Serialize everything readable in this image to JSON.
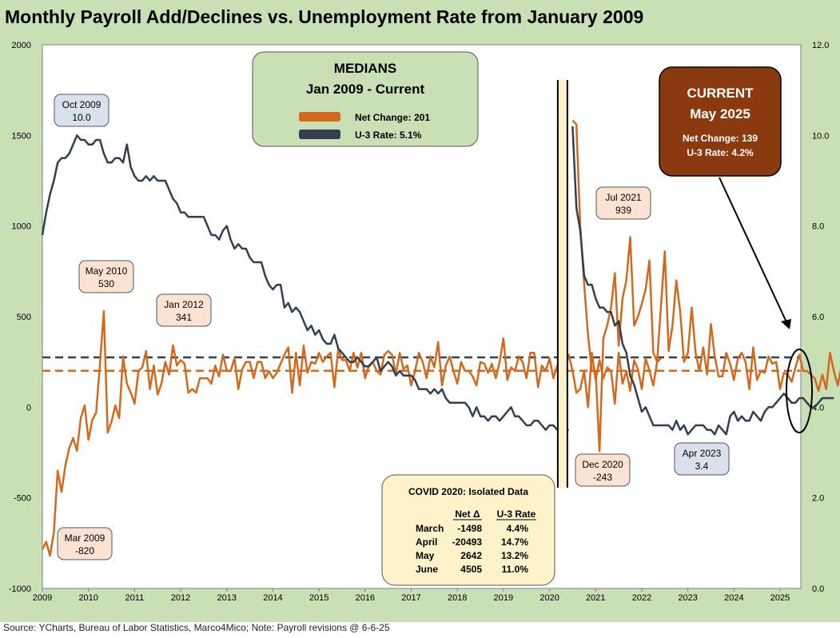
{
  "title": "Monthly Payroll Add/Declines vs. Unemployment Rate from January 2009",
  "source": "Source: YCharts, Bureau of Labor Statistics, Marco4Mico; Note: Payroll revisions @ 6-6-25",
  "colors": {
    "net_change": "#d2691e",
    "u3_rate": "#333f50",
    "plot_bg": "#c9dfb4",
    "medians_box": "#c9dfb4",
    "current_box": "#8b3a0f",
    "callout_peach": "#fbe3d4",
    "callout_blue": "#d9e1ee",
    "covid_box": "#fdf2c9"
  },
  "medians_box": {
    "title": "MEDIANS",
    "subtitle": "Jan 2009 - Current",
    "net_change_label": "Net Change: 201",
    "u3_label": "U-3 Rate: 5.1%"
  },
  "current_box": {
    "title": "CURRENT",
    "subtitle": "May 2025",
    "net_change": "Net Change: 139",
    "u3": "U-3 Rate: 4.2%"
  },
  "callouts": [
    {
      "label": "Oct 2009",
      "value": "10.0",
      "style": "blue"
    },
    {
      "label": "May 2010",
      "value": "530",
      "style": "peach"
    },
    {
      "label": "Jan 2012",
      "value": "341",
      "style": "peach"
    },
    {
      "label": "Mar 2009",
      "value": "-820",
      "style": "peach"
    },
    {
      "label": "Jul 2021",
      "value": "939",
      "style": "peach"
    },
    {
      "label": "Dec 2020",
      "value": "-243",
      "style": "peach"
    },
    {
      "label": "Apr 2023",
      "value": "3.4",
      "style": "blue"
    }
  ],
  "covid_box": {
    "title": "COVID 2020:  Isolated Data",
    "headers": [
      "Net  Δ",
      "U-3 Rate"
    ],
    "rows": [
      {
        "month": "March",
        "net": "-1498",
        "rate": "4.4%"
      },
      {
        "month": "April",
        "net": "-20493",
        "rate": "14.7%"
      },
      {
        "month": "May",
        "net": "2642",
        "rate": "13.2%"
      },
      {
        "month": "June",
        "net": "4505",
        "rate": "11.0%"
      }
    ]
  },
  "chart_data": {
    "type": "line",
    "title": "Monthly Payroll Add/Declines vs. Unemployment Rate from January 2009",
    "x_ticks": [
      "2009",
      "2010",
      "2011",
      "2012",
      "2013",
      "2014",
      "2015",
      "2016",
      "2017",
      "2018",
      "2019",
      "2020",
      "2021",
      "2022",
      "2023",
      "2024",
      "2025"
    ],
    "y_left": {
      "ticks": [
        "2000",
        "1500",
        "1000",
        "500",
        "0",
        "-500",
        "-1000"
      ],
      "range": [
        -1000,
        2000
      ]
    },
    "y_right": {
      "ticks": [
        "12.0",
        "10.0",
        "8.0",
        "6.0",
        "4.0",
        "2.0",
        "0.0"
      ],
      "range": [
        0,
        12
      ]
    },
    "median_net_change": 201,
    "median_u3": 5.1,
    "grid": false,
    "series": [
      {
        "name": "Net Change",
        "axis": "left",
        "segments": [
          {
            "x_start": 2009.0,
            "values": [
              -784,
              -743,
              -820,
              -690,
              -350,
              -468,
              -320,
              -225,
              -170,
              -240,
              -60,
              10,
              -180,
              -70,
              -30,
              240,
              530,
              -140,
              -80,
              10,
              -60,
              280,
              130,
              80,
              20,
              200,
              220,
              310,
              100,
              230,
              70,
              130,
              250,
              180,
              341,
              230,
              260,
              240,
              80,
              100,
              80,
              160,
              160,
              160,
              130,
              230,
              170,
              290,
              200,
              200,
              270,
              100,
              210,
              250,
              250,
              160,
              250,
              250,
              160,
              200,
              160,
              190,
              240,
              290,
              330,
              80,
              300,
              120,
              340,
              190,
              250,
              240,
              300,
              250,
              280,
              300,
              110,
              320,
              260,
              260,
              200,
              300,
              220,
              300,
              160,
              230,
              250,
              200,
              180,
              290,
              310,
              290,
              180,
              300,
              210,
              230,
              120,
              200,
              300,
              250,
              160,
              280,
              220,
              360,
              120,
              230,
              280,
              200,
              130,
              250,
              200,
              200,
              170,
              120,
              250,
              240,
              190,
              240,
              160,
              250,
              380,
              150,
              220,
              200,
              280,
              250,
              160,
              300,
              300,
              110,
              230,
              200,
              270,
              160,
              230,
              190,
              200,
              290,
              200,
              80,
              100,
              200,
              0,
              300,
              150,
              260,
              160,
              220,
              200,
              20,
              300,
              130,
              200,
              90,
              260,
              210,
              100,
              270,
              200,
              120,
              250,
              270
            ]
          },
          {
            "x_start": 2020.5,
            "values": [
              1583,
              1560,
              1000,
              680,
              400,
              200,
              200,
              -243,
              380,
              450,
              550,
              740,
              340,
              600,
              700,
              939,
              450,
              500,
              570,
              650,
              810,
              300,
              250,
              560,
              860,
              310,
              450,
              700,
              530,
              250,
              300,
              550,
              300,
              200,
              330,
              180,
              460,
              280,
              170,
              170,
              300,
              240,
              150,
              270,
              300,
              250,
              100,
              330,
              150,
              200,
              190,
              280,
              240,
              250,
              100,
              190,
              180,
              140,
              220,
              290,
              200,
              200,
              180,
              160,
              90,
              180,
              100,
              300,
              200,
              120,
              230,
              150,
              200,
              320,
              110,
              120,
              180,
              160,
              100,
              330,
              170,
              100,
              140,
              147,
              139
            ]
          }
        ]
      },
      {
        "name": "U-3 Rate",
        "axis": "right",
        "segments": [
          {
            "x_start": 2009.0,
            "values": [
              7.8,
              8.3,
              8.7,
              9.0,
              9.4,
              9.5,
              9.5,
              9.6,
              9.8,
              10.0,
              9.9,
              9.9,
              9.8,
              9.8,
              9.9,
              9.9,
              9.6,
              9.4,
              9.4,
              9.5,
              9.5,
              9.4,
              9.8,
              9.3,
              9.1,
              9.0,
              9.0,
              9.1,
              9.0,
              9.1,
              9.0,
              9.0,
              9.0,
              8.8,
              8.6,
              8.5,
              8.3,
              8.3,
              8.2,
              8.2,
              8.2,
              8.2,
              8.2,
              8.0,
              7.8,
              7.8,
              7.7,
              7.9,
              8.0,
              7.7,
              7.5,
              7.6,
              7.5,
              7.5,
              7.3,
              7.2,
              7.2,
              7.2,
              6.9,
              6.7,
              6.6,
              6.7,
              6.7,
              6.2,
              6.3,
              6.1,
              6.2,
              6.1,
              5.9,
              5.7,
              5.8,
              5.6,
              5.7,
              5.5,
              5.4,
              5.4,
              5.6,
              5.3,
              5.2,
              5.1,
              5.0,
              5.0,
              5.1,
              5.0,
              4.9,
              4.9,
              5.0,
              5.1,
              4.8,
              4.9,
              5.0,
              4.9,
              4.7,
              4.8,
              4.7,
              4.7,
              4.7,
              4.6,
              4.4,
              4.4,
              4.4,
              4.3,
              4.4,
              4.3,
              4.4,
              4.2,
              4.1,
              4.1,
              4.1,
              4.1,
              4.1,
              4.0,
              3.8,
              4.0,
              3.8,
              3.8,
              3.7,
              3.8,
              3.8,
              3.7,
              3.8,
              3.9,
              4.0,
              3.8,
              3.8,
              3.7,
              3.6,
              3.6,
              3.7,
              3.7,
              3.6,
              3.5,
              3.6,
              3.6,
              3.5,
              3.6,
              3.5,
              3.5
            ]
          },
          {
            "x_start": 2020.5,
            "values": [
              10.2,
              8.4,
              7.9,
              6.9,
              6.7,
              6.7,
              6.4,
              6.2,
              6.2,
              6.1,
              6.1,
              5.8,
              5.9,
              5.4,
              5.2,
              4.7,
              4.5,
              4.2,
              3.9,
              4.0,
              3.8,
              3.6,
              3.6,
              3.6,
              3.6,
              3.6,
              3.5,
              3.7,
              3.5,
              3.6,
              3.4,
              3.5,
              3.6,
              3.6,
              3.6,
              3.5,
              3.5,
              3.4,
              3.6,
              3.5,
              3.4,
              3.8,
              3.9,
              3.7,
              3.8,
              3.7,
              3.7,
              3.9,
              3.8,
              3.7,
              3.9,
              4.0,
              4.0,
              4.1,
              4.2,
              4.3,
              4.2,
              4.1,
              4.1,
              4.2,
              4.2,
              4.1,
              4.0,
              4.0,
              4.1,
              4.2,
              4.2,
              4.2,
              4.2
            ]
          }
        ]
      }
    ]
  }
}
